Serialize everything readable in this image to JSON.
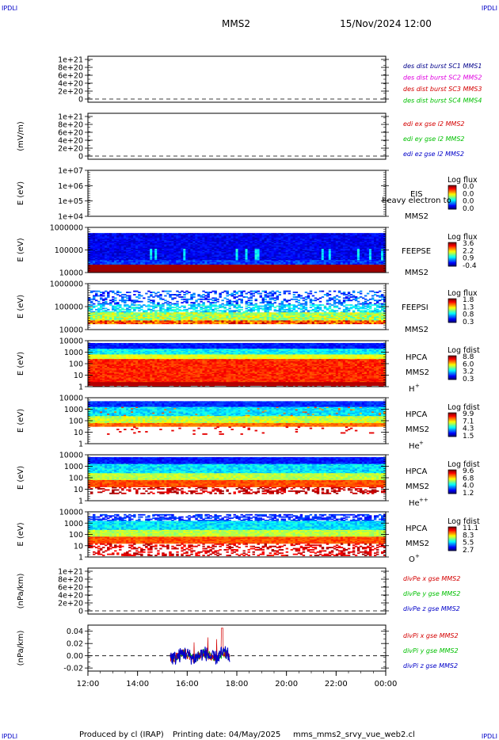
{
  "header": {
    "corner_label": "IPDLI",
    "spacecraft": "MMS2",
    "datetime": "15/Nov/2024 12:00"
  },
  "footer": {
    "produced_by": "Produced by cl (IRAP)",
    "printing_date": "Printing date: 04/May/2025",
    "script": "mms_mms2_srvy_vue_web2.cl"
  },
  "colors": {
    "red": "#d40000",
    "green": "#00c000",
    "blue": "#0000c8",
    "magenta": "#e000e0",
    "dark_blue": "#00008b"
  },
  "chart_data": [
    {
      "id": "p1",
      "type": "line",
      "ylabel": "",
      "yticks": [
        "1e+21",
        "8e+20",
        "6e+20",
        "4e+20",
        "2e+20",
        "0"
      ],
      "ylim": [
        0,
        1e+21
      ],
      "legend": [
        {
          "text": "des dist burst SC1 MMS1",
          "color": "#00008b"
        },
        {
          "text": "des dist burst SC2 MMS2",
          "color": "#e000e0"
        },
        {
          "text": "des dist burst SC3 MMS3",
          "color": "#d40000"
        },
        {
          "text": "des dist burst SC4 MMS4",
          "color": "#00c000"
        }
      ],
      "zero_line": true
    },
    {
      "id": "p2",
      "type": "line",
      "ylabel": "(mV/m)",
      "yticks": [
        "1e+21",
        "8e+20",
        "6e+20",
        "4e+20",
        "2e+20",
        "0"
      ],
      "ylim": [
        0,
        1e+21
      ],
      "legend": [
        {
          "text": "edi ex gse l2 MMS2",
          "color": "#d40000"
        },
        {
          "text": "edi ey gse l2 MMS2",
          "color": "#00c000"
        },
        {
          "text": "edi ez gse l2 MMS2",
          "color": "#0000c8"
        }
      ],
      "zero_line": true
    },
    {
      "id": "p3",
      "type": "heatmap",
      "ylabel": "E (eV)",
      "yticks": [
        "1e+07",
        "1e+06",
        "1e+05",
        "1e+04"
      ],
      "yscale": "log",
      "instrument": [
        "EIS",
        "MMS2"
      ],
      "overlay_text": "heavy electron to",
      "colorbar": {
        "title": "Log flux",
        "ticks": [
          "0.0",
          "0.0",
          "0.0",
          "0.0"
        ]
      },
      "fill": "none"
    },
    {
      "id": "p4",
      "type": "heatmap",
      "ylabel": "E (eV)",
      "yticks": [
        "1000000",
        "100000",
        "10000"
      ],
      "yscale": "log",
      "instrument": [
        "FEEPSE",
        "MMS2"
      ],
      "colorbar": {
        "title": "Log flux",
        "ticks": [
          "3.6",
          "2.2",
          "0.9",
          "-0.4"
        ]
      },
      "fill": "feepse"
    },
    {
      "id": "p5",
      "type": "heatmap",
      "ylabel": "E (eV)",
      "yticks": [
        "1000000",
        "100000",
        "10000"
      ],
      "yscale": "log",
      "instrument": [
        "FEEPSI",
        "MMS2"
      ],
      "colorbar": {
        "title": "Log flux",
        "ticks": [
          "1.8",
          "1.3",
          "0.8",
          "0.3"
        ]
      },
      "fill": "feepsi"
    },
    {
      "id": "p6",
      "type": "heatmap",
      "ylabel": "E (eV)",
      "yticks": [
        "10000",
        "1000",
        "100",
        "10",
        "1"
      ],
      "yscale": "log",
      "instrument": [
        "HPCA",
        "MMS2",
        "H",
        "+"
      ],
      "colorbar": {
        "title": "Log fdist",
        "ticks": [
          "8.8",
          "6.0",
          "3.2",
          "0.3"
        ]
      },
      "fill": "hplus"
    },
    {
      "id": "p7",
      "type": "heatmap",
      "ylabel": "E (eV)",
      "yticks": [
        "10000",
        "1000",
        "100",
        "10",
        "1"
      ],
      "yscale": "log",
      "instrument": [
        "HPCA",
        "MMS2",
        "He",
        "+"
      ],
      "colorbar": {
        "title": "Log fdist",
        "ticks": [
          "9.9",
          "7.1",
          "4.3",
          "1.5"
        ]
      },
      "fill": "heplus"
    },
    {
      "id": "p8",
      "type": "heatmap",
      "ylabel": "E (eV)",
      "yticks": [
        "10000",
        "1000",
        "100",
        "10",
        "1"
      ],
      "yscale": "log",
      "instrument": [
        "HPCA",
        "MMS2",
        "He",
        "++"
      ],
      "colorbar": {
        "title": "Log fdist",
        "ticks": [
          "9.6",
          "6.8",
          "4.0",
          "1.2"
        ]
      },
      "fill": "heplusplus"
    },
    {
      "id": "p9",
      "type": "heatmap",
      "ylabel": "E (eV)",
      "yticks": [
        "10000",
        "1000",
        "100",
        "10",
        "1"
      ],
      "yscale": "log",
      "instrument": [
        "HPCA",
        "MMS2",
        "O",
        "+"
      ],
      "colorbar": {
        "title": "Log fdist",
        "ticks": [
          "11.1",
          "8.3",
          "5.5",
          "2.7"
        ]
      },
      "fill": "oplus"
    },
    {
      "id": "p10",
      "type": "line",
      "ylabel": "(nPa/km)",
      "yticks": [
        "1e+21",
        "8e+20",
        "6e+20",
        "4e+20",
        "2e+20",
        "0"
      ],
      "ylim": [
        0,
        1e+21
      ],
      "legend": [
        {
          "text": "divPe x gse MMS2",
          "color": "#d40000"
        },
        {
          "text": "divPe y gse MMS2",
          "color": "#00c000"
        },
        {
          "text": "divPe z gse MMS2",
          "color": "#0000c8"
        }
      ],
      "zero_line": true
    },
    {
      "id": "p11",
      "type": "line",
      "ylabel": "(nPa/km)",
      "yticks": [
        "0.04",
        "0.02",
        "0.00",
        "-0.02"
      ],
      "ylim": [
        -0.025,
        0.05
      ],
      "legend": [
        {
          "text": "divPi x gse MMS2",
          "color": "#d40000"
        },
        {
          "text": "divPi y gse MMS2",
          "color": "#00c000"
        },
        {
          "text": "divPi z gse MMS2",
          "color": "#0000c8"
        }
      ],
      "zero_line": true,
      "data_interval": [
        "15:20",
        "17:45"
      ],
      "series_range": [
        -0.02,
        0.045
      ]
    }
  ],
  "xaxis": {
    "ticks": [
      "12:00",
      "14:00",
      "16:00",
      "18:00",
      "20:00",
      "22:00",
      "00:00"
    ],
    "range": [
      "12:00",
      "00:00"
    ]
  }
}
